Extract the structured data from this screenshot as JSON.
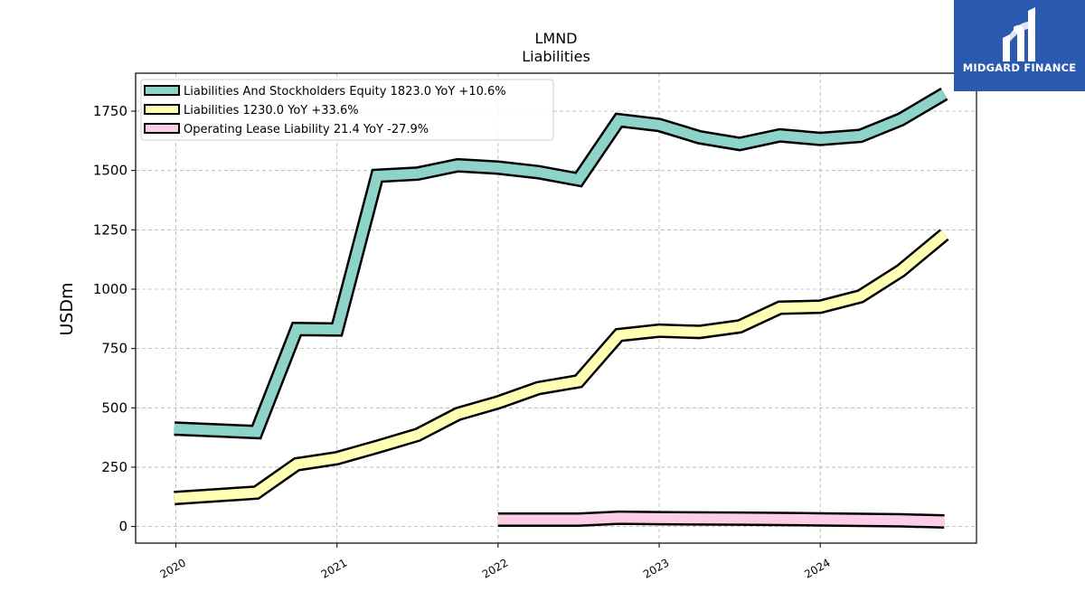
{
  "chart_data": {
    "type": "line",
    "title": "LMND",
    "subtitle": "Liabilities",
    "ylabel": "USDm",
    "xlabel": "",
    "ylim": [
      -70,
      1910
    ],
    "yticks": [
      0,
      250,
      500,
      750,
      1000,
      1250,
      1500,
      1750
    ],
    "xlim": [
      2019.75,
      2024.97
    ],
    "xticks": [
      2020,
      2021,
      2022,
      2023,
      2024
    ],
    "xtick_labels": [
      "2020",
      "2021",
      "2022",
      "2023",
      "2024"
    ],
    "grid": true,
    "legend_position": "top-left",
    "series": [
      {
        "name": "Liabilities And Stockholders Equity  1823.0 YoY +10.6%",
        "color": "#8dd3c7",
        "x": [
          2019.99,
          2020.5,
          2020.75,
          2021.0,
          2021.25,
          2021.5,
          2021.75,
          2022.0,
          2022.25,
          2022.5,
          2022.75,
          2023.0,
          2023.25,
          2023.5,
          2023.75,
          2024.0,
          2024.25,
          2024.5,
          2024.77
        ],
        "y": [
          413,
          398,
          832,
          830,
          1478,
          1487,
          1522,
          1512,
          1493,
          1462,
          1712,
          1692,
          1640,
          1612,
          1648,
          1633,
          1646,
          1715,
          1823
        ]
      },
      {
        "name": "Liabilities  1230.0 YoY +33.6%",
        "color": "#ffffb3",
        "x": [
          2019.99,
          2020.5,
          2020.75,
          2021.0,
          2021.25,
          2021.5,
          2021.75,
          2022.0,
          2022.25,
          2022.5,
          2022.75,
          2023.0,
          2023.25,
          2023.5,
          2023.75,
          2024.0,
          2024.25,
          2024.5,
          2024.77
        ],
        "y": [
          120,
          143,
          262,
          288,
          336,
          386,
          474,
          523,
          583,
          612,
          807,
          825,
          820,
          843,
          922,
          926,
          970,
          1078,
          1230
        ]
      },
      {
        "name": "Operating Lease Liability  21.4 YoY -27.9%",
        "color": "#fccde5",
        "x": [
          2022.0,
          2022.5,
          2022.75,
          2023.0,
          2023.5,
          2024.0,
          2024.5,
          2024.77
        ],
        "y": [
          29,
          29,
          37,
          35,
          33,
          30,
          26,
          21.4
        ]
      }
    ]
  },
  "logo": {
    "text": "MIDGARD FINANCE"
  }
}
